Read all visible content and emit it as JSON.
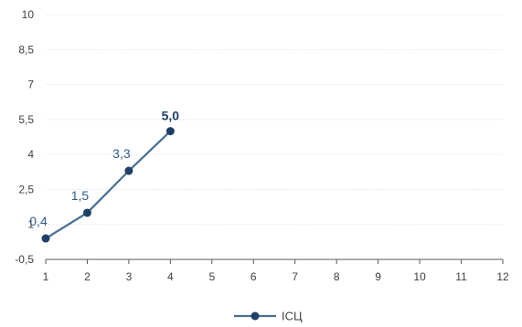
{
  "chart_data": {
    "type": "line",
    "x": [
      1,
      2,
      3,
      4
    ],
    "xlim": [
      1,
      12
    ],
    "x_ticks": [
      1,
      2,
      3,
      4,
      5,
      6,
      7,
      8,
      9,
      10,
      11,
      12
    ],
    "ylim": [
      -0.5,
      10
    ],
    "y_ticks": [
      {
        "value": -0.5,
        "label": "-0,5"
      },
      {
        "value": 1,
        "label": "1"
      },
      {
        "value": 2.5,
        "label": "2,5"
      },
      {
        "value": 4,
        "label": "4"
      },
      {
        "value": 5.5,
        "label": "5,5"
      },
      {
        "value": 7,
        "label": "7"
      },
      {
        "value": 8.5,
        "label": "8,5"
      },
      {
        "value": 10,
        "label": "10"
      }
    ],
    "grid": true,
    "legend": "bottom-center",
    "series": [
      {
        "name": "ІСЦ",
        "color": "#4a6f93",
        "marker_color": "#1f3f66",
        "values": [
          0.4,
          1.5,
          3.3,
          5.0
        ],
        "labels": [
          "0,4",
          "1,5",
          "3,3",
          "5,0"
        ],
        "last_label_bold": true
      }
    ]
  }
}
